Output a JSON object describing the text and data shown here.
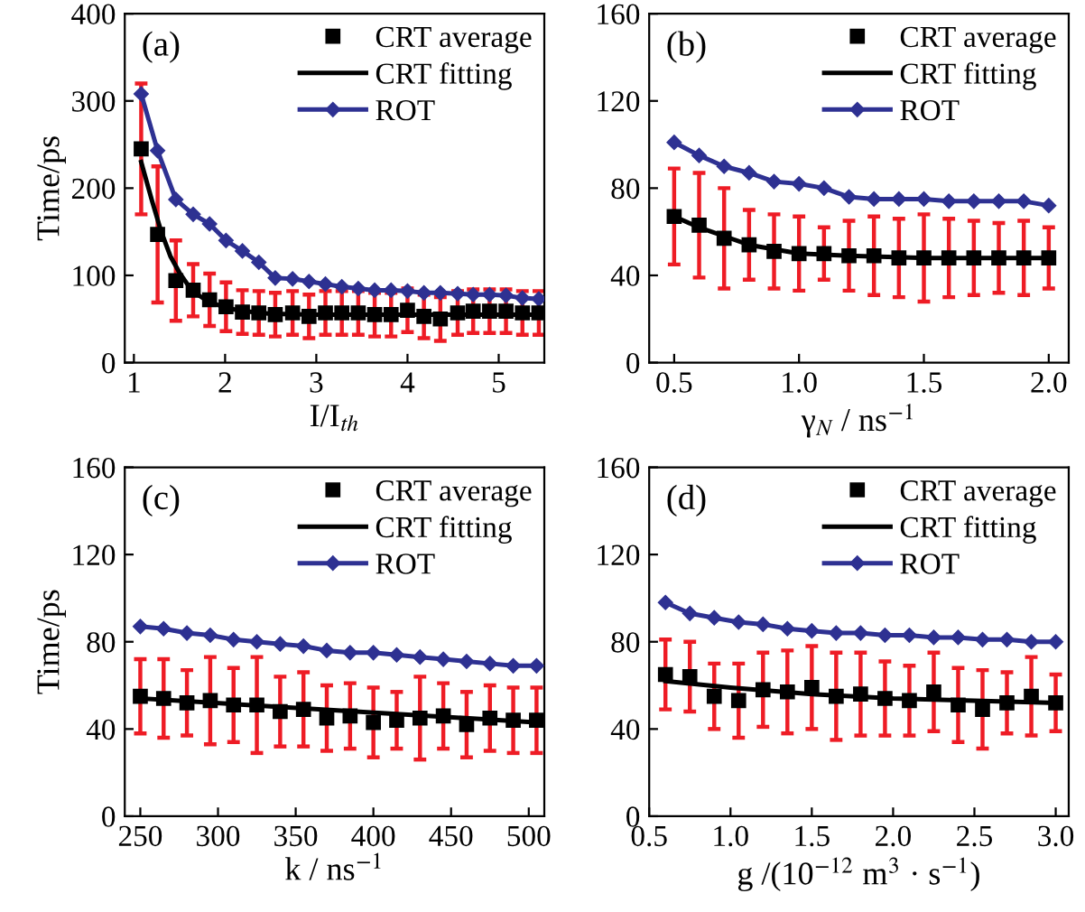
{
  "chart_data": [
    {
      "type": "line",
      "ylabel": "Time/ps",
      "xlabel": "I/I$_{th}$",
      "annotations": [
        "(a)"
      ],
      "xlim": [
        0.9,
        5.5
      ],
      "xticks": [
        1,
        2,
        3,
        4,
        5
      ],
      "ylim": [
        0,
        400
      ],
      "yticks": [
        0,
        100,
        200,
        300,
        400
      ],
      "legend": "top right",
      "series": [
        {
          "name": "CRT average",
          "type": "scatter",
          "marker": "square",
          "color": "#000000",
          "x": [
            1.08,
            1.26,
            1.46,
            1.65,
            1.83,
            2.01,
            2.19,
            2.37,
            2.55,
            2.74,
            2.92,
            3.1,
            3.28,
            3.46,
            3.64,
            3.82,
            4.0,
            4.18,
            4.36,
            4.55,
            4.72,
            4.9,
            5.08,
            5.26,
            5.44
          ],
          "values": [
            245,
            147,
            94,
            83,
            72,
            64,
            58,
            57,
            55,
            57,
            53,
            57,
            57,
            57,
            55,
            55,
            60,
            53,
            50,
            57,
            59,
            59,
            59,
            57,
            57
          ],
          "errors": [
            75,
            78,
            46,
            30,
            30,
            28,
            25,
            25,
            25,
            25,
            25,
            25,
            25,
            25,
            25,
            25,
            25,
            25,
            25,
            25,
            25,
            25,
            25,
            25,
            25
          ]
        },
        {
          "name": "CRT fitting",
          "marker": "none",
          "color": "#000000",
          "x": [
            1.08,
            1.2,
            1.3,
            1.4,
            1.5,
            1.6,
            1.7,
            1.8,
            2.0,
            2.2,
            2.5,
            3.0,
            4.0,
            5.44
          ],
          "values": [
            230,
            185,
            150,
            122,
            103,
            88,
            78,
            71,
            63,
            59,
            56,
            55,
            55,
            55
          ]
        },
        {
          "name": "ROT",
          "marker": "diamond",
          "color": "#2e3192",
          "x": [
            1.08,
            1.26,
            1.46,
            1.65,
            1.83,
            2.01,
            2.19,
            2.37,
            2.55,
            2.74,
            2.92,
            3.1,
            3.28,
            3.46,
            3.64,
            3.82,
            4.0,
            4.18,
            4.36,
            4.55,
            4.72,
            4.9,
            5.08,
            5.26,
            5.44
          ],
          "values": [
            308,
            243,
            187,
            170,
            159,
            140,
            128,
            115,
            97,
            96,
            93,
            90,
            87,
            85,
            83,
            83,
            82,
            80,
            80,
            79,
            78,
            78,
            77,
            74,
            73
          ]
        }
      ]
    },
    {
      "type": "line",
      "xlabel": "γ$_{N}$ / ns$^{−1}$",
      "annotations": [
        "(b)"
      ],
      "xlim": [
        0.4,
        2.08
      ],
      "xticks": [
        0.5,
        {
          "value": 1,
          "label": "1.0"
        },
        1.5,
        {
          "value": 2,
          "label": "2.0"
        }
      ],
      "ylim": [
        0,
        160
      ],
      "yticks": [
        0,
        40,
        80,
        120,
        160
      ],
      "legend": "top right",
      "series": [
        {
          "name": "CRT average",
          "type": "scatter",
          "marker": "square",
          "color": "#000000",
          "x": [
            0.5,
            0.6,
            0.7,
            0.8,
            0.9,
            1.0,
            1.1,
            1.2,
            1.3,
            1.4,
            1.5,
            1.6,
            1.7,
            1.8,
            1.9,
            2.0
          ],
          "values": [
            67,
            63,
            57,
            54,
            51,
            50,
            50,
            49,
            49,
            48,
            48,
            48,
            48,
            48,
            48,
            48
          ],
          "errors": [
            22,
            24,
            23,
            16,
            17,
            17,
            12,
            16,
            18,
            18,
            20,
            18,
            17,
            16,
            17,
            14
          ]
        },
        {
          "name": "CRT fitting",
          "marker": "none",
          "color": "#000000",
          "x": [
            0.5,
            0.6,
            0.7,
            0.8,
            0.9,
            1.0,
            1.2,
            1.5,
            2.0
          ],
          "values": [
            67,
            62,
            58,
            54,
            52,
            50,
            49,
            48,
            48
          ]
        },
        {
          "name": "ROT",
          "marker": "diamond",
          "color": "#2e3192",
          "x": [
            0.5,
            0.6,
            0.7,
            0.8,
            0.9,
            1.0,
            1.1,
            1.2,
            1.3,
            1.4,
            1.5,
            1.6,
            1.7,
            1.8,
            1.9,
            2.0
          ],
          "values": [
            101,
            95,
            90,
            87,
            83,
            82,
            80,
            76,
            75,
            75,
            75,
            74,
            74,
            74,
            74,
            72
          ]
        }
      ]
    },
    {
      "type": "line",
      "ylabel": "Time/ps",
      "xlabel": "k / ns$^{−1}$",
      "annotations": [
        "(c)"
      ],
      "xlim": [
        240,
        510
      ],
      "xticks": [
        250,
        300,
        350,
        400,
        450,
        500
      ],
      "ylim": [
        0,
        160
      ],
      "yticks": [
        0,
        40,
        80,
        120,
        160
      ],
      "legend": "top right",
      "series": [
        {
          "name": "CRT average",
          "type": "scatter",
          "marker": "square",
          "color": "#000000",
          "x": [
            250,
            265,
            280,
            295,
            310,
            325,
            340,
            355,
            370,
            385,
            400,
            415,
            430,
            445,
            460,
            475,
            490,
            505
          ],
          "values": [
            55,
            54,
            52,
            53,
            51,
            51,
            48,
            49,
            45,
            46,
            43,
            44,
            45,
            46,
            42,
            45,
            44,
            44
          ],
          "errors": [
            17,
            18,
            15,
            20,
            17,
            22,
            16,
            17,
            15,
            15,
            16,
            13,
            19,
            15,
            15,
            15,
            15,
            15
          ]
        },
        {
          "name": "CRT fitting",
          "marker": "none",
          "color": "#000000",
          "x": [
            250,
            505
          ],
          "values": [
            54,
            43
          ]
        },
        {
          "name": "ROT",
          "marker": "diamond",
          "color": "#2e3192",
          "x": [
            250,
            265,
            280,
            295,
            310,
            325,
            340,
            355,
            370,
            385,
            400,
            415,
            430,
            445,
            460,
            475,
            490,
            505
          ],
          "values": [
            87,
            86,
            84,
            83,
            81,
            80,
            79,
            78,
            76,
            75,
            75,
            74,
            73,
            72,
            71,
            70,
            69,
            69
          ]
        }
      ]
    },
    {
      "type": "line",
      "xlabel": "g /(10$^{−12}$ m$^{3}$ · s$^{−1}$)",
      "annotations": [
        "(d)"
      ],
      "xlim": [
        0.5,
        3.08
      ],
      "xticks": [
        0.5,
        {
          "value": 1,
          "label": "1.0"
        },
        1.5,
        {
          "value": 2,
          "label": "2.0"
        },
        2.5,
        {
          "value": 3,
          "label": "3.0"
        }
      ],
      "ylim": [
        0,
        160
      ],
      "yticks": [
        0,
        40,
        80,
        120,
        160
      ],
      "legend": "top right",
      "series": [
        {
          "name": "CRT average",
          "type": "scatter",
          "marker": "square",
          "color": "#000000",
          "x": [
            0.6,
            0.75,
            0.9,
            1.05,
            1.2,
            1.35,
            1.5,
            1.65,
            1.8,
            1.95,
            2.1,
            2.25,
            2.4,
            2.55,
            2.7,
            2.85,
            3.0
          ],
          "values": [
            65,
            64,
            55,
            53,
            58,
            57,
            59,
            55,
            56,
            54,
            53,
            57,
            51,
            49,
            52,
            55,
            52
          ],
          "errors": [
            16,
            16,
            15,
            17,
            17,
            19,
            19,
            20,
            19,
            17,
            16,
            18,
            17,
            18,
            14,
            18,
            13
          ]
        },
        {
          "name": "CRT fitting",
          "marker": "none",
          "color": "#000000",
          "x": [
            0.6,
            1.0,
            1.5,
            2.0,
            2.5,
            3.0
          ],
          "values": [
            62,
            59,
            56,
            54,
            53,
            52
          ]
        },
        {
          "name": "ROT",
          "marker": "diamond",
          "color": "#2e3192",
          "x": [
            0.6,
            0.75,
            0.9,
            1.05,
            1.2,
            1.35,
            1.5,
            1.65,
            1.8,
            1.95,
            2.1,
            2.25,
            2.4,
            2.55,
            2.7,
            2.85,
            3.0
          ],
          "values": [
            98,
            93,
            91,
            89,
            88,
            86,
            85,
            84,
            84,
            83,
            83,
            82,
            82,
            81,
            81,
            80,
            80
          ]
        }
      ]
    }
  ]
}
